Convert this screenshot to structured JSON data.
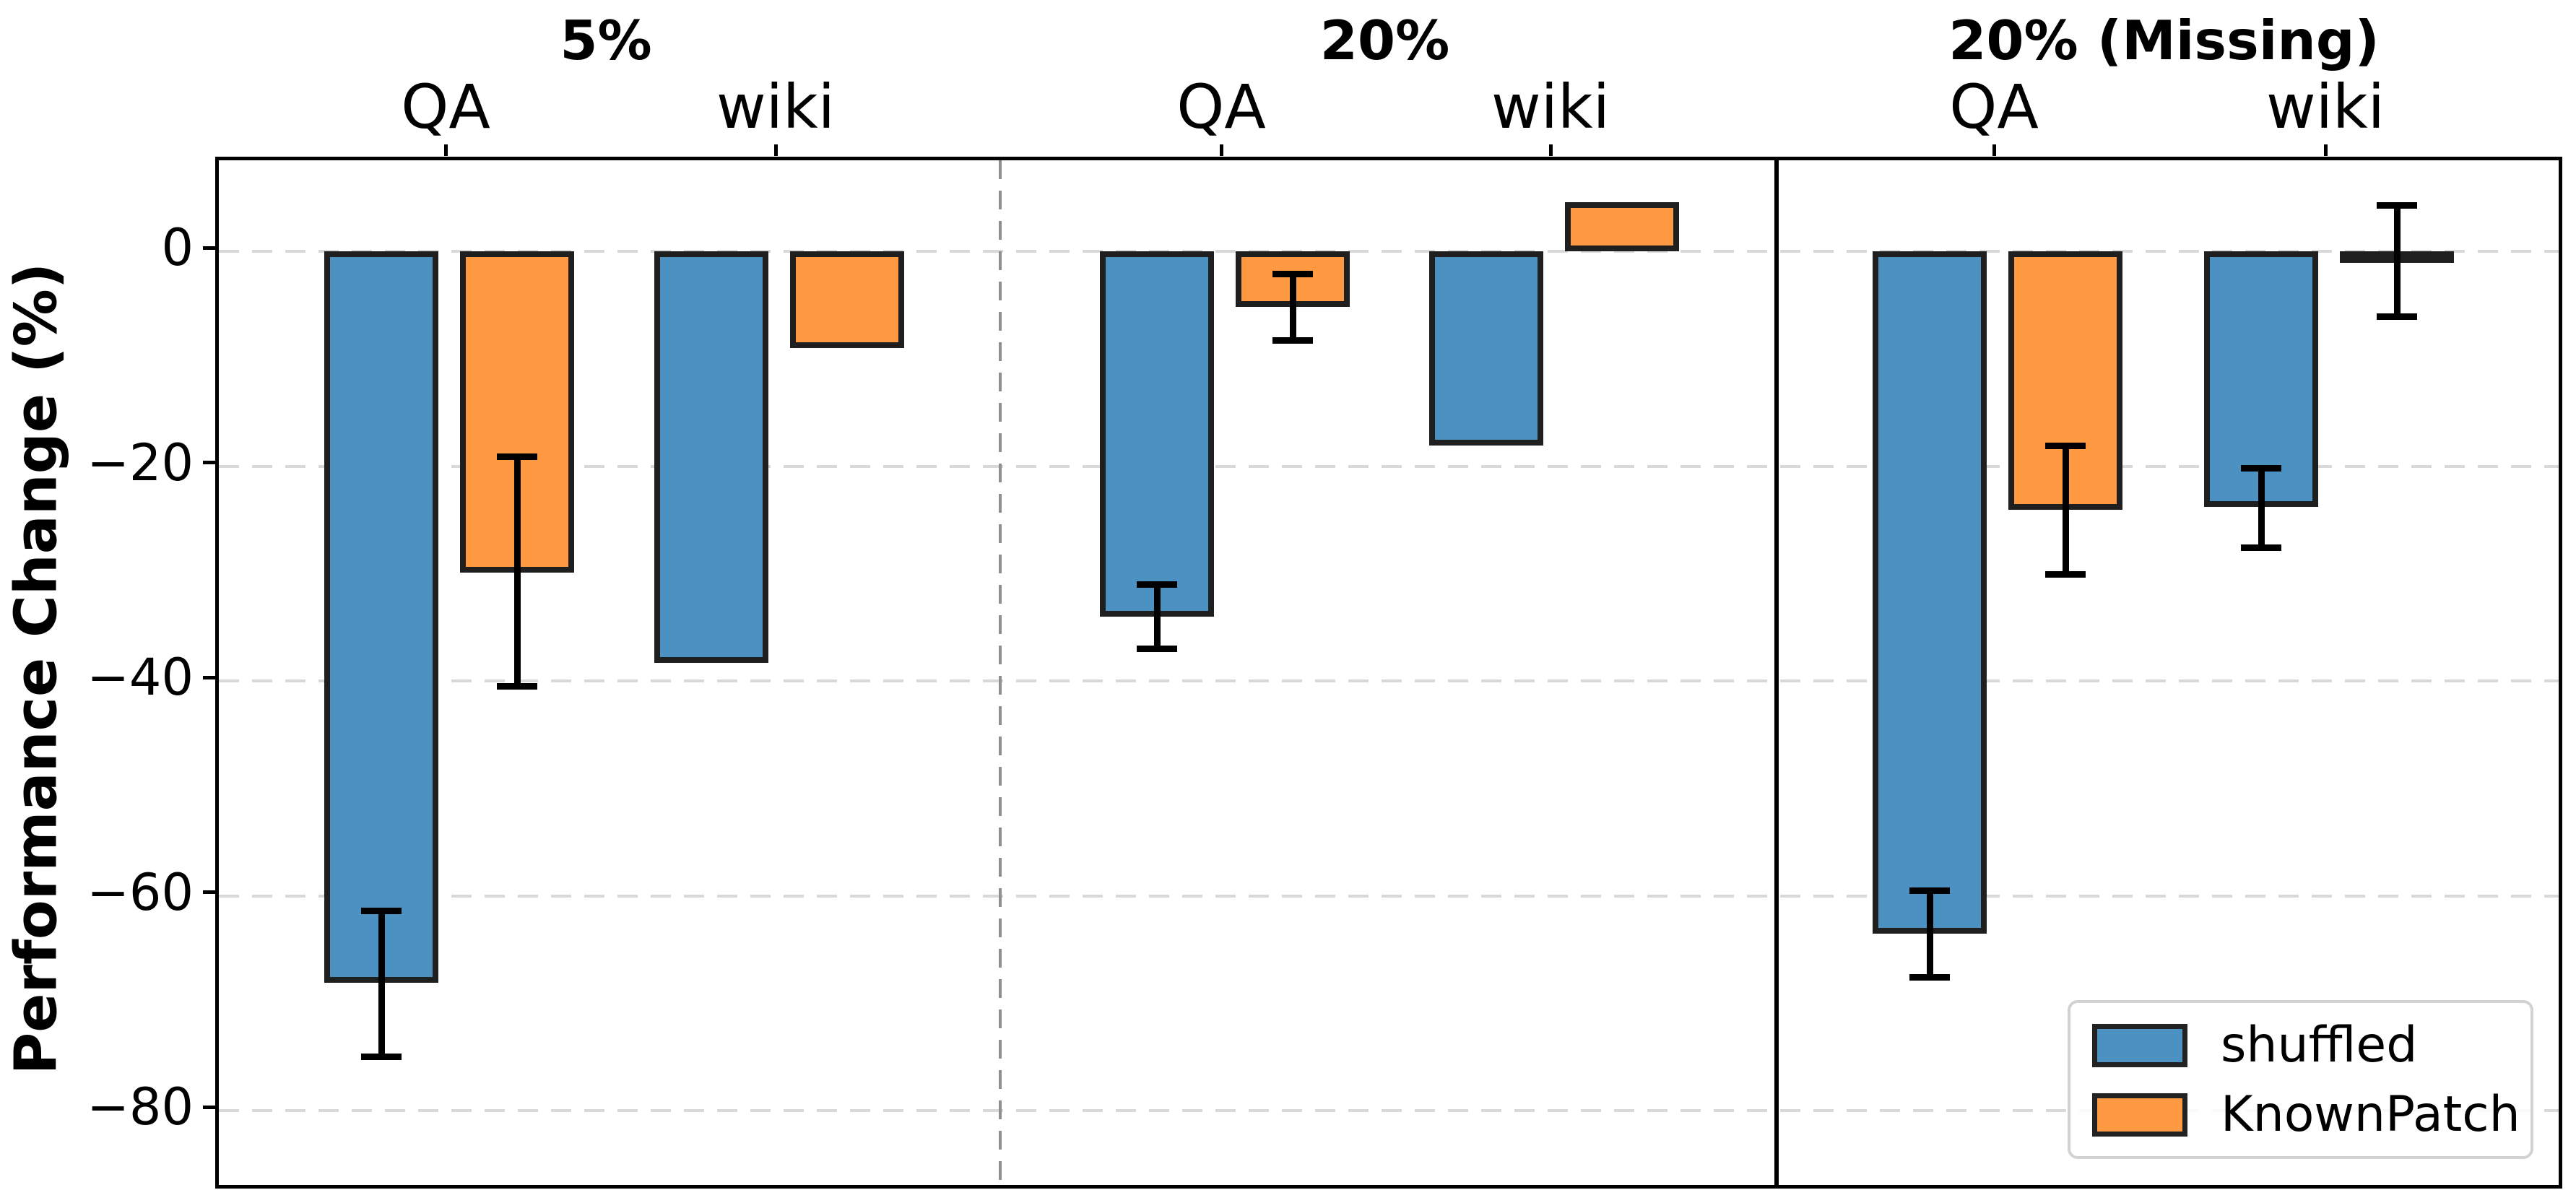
{
  "chart_data": {
    "type": "bar",
    "title": "",
    "ylabel": "Performance Change (%)",
    "ylim": [
      -87,
      8.5
    ],
    "yticks": [
      0,
      -20,
      -40,
      -60,
      -80
    ],
    "grid": "horizontal-dashed",
    "legend": {
      "position": "lower-right",
      "entries": [
        "shuffled",
        "KnownPatch"
      ]
    },
    "series": [
      {
        "name": "shuffled",
        "color": "#4b92c3"
      },
      {
        "name": "KnownPatch",
        "color": "#ff9942"
      }
    ],
    "bar_edge_color": "#1f1f1f",
    "error_bar_color": "#000000",
    "gridline_color": "#d9d9d9",
    "panels": [
      {
        "title": "5%",
        "divider_after": "dashed",
        "groups": [
          {
            "label": "QA",
            "bars": [
              {
                "series": "shuffled",
                "value": -68.1,
                "err_low": -75.0,
                "err_high": -61.4
              },
              {
                "series": "KnownPatch",
                "value": -29.9,
                "err_low": -40.5,
                "err_high": -19.1
              }
            ]
          },
          {
            "label": "wiki",
            "bars": [
              {
                "series": "shuffled",
                "value": -38.3,
                "err_low": null,
                "err_high": null
              },
              {
                "series": "KnownPatch",
                "value": -9.0,
                "err_low": null,
                "err_high": null
              }
            ]
          }
        ]
      },
      {
        "title": "20%",
        "divider_after": "solid",
        "groups": [
          {
            "label": "QA",
            "bars": [
              {
                "series": "shuffled",
                "value": -34.0,
                "err_low": -37.0,
                "err_high": -31.0
              },
              {
                "series": "KnownPatch",
                "value": -5.2,
                "err_low": -8.3,
                "err_high": -2.1
              }
            ]
          },
          {
            "label": "wiki",
            "bars": [
              {
                "series": "shuffled",
                "value": -18.1,
                "err_low": null,
                "err_high": null
              },
              {
                "series": "KnownPatch",
                "value": 4.6,
                "err_low": null,
                "err_high": null
              }
            ]
          }
        ]
      },
      {
        "title": "20% (Missing)",
        "divider_after": null,
        "groups": [
          {
            "label": "QA",
            "bars": [
              {
                "series": "shuffled",
                "value": -63.5,
                "err_low": -67.6,
                "err_high": -59.5
              },
              {
                "series": "KnownPatch",
                "value": -24.1,
                "err_low": -30.1,
                "err_high": -18.1
              }
            ]
          },
          {
            "label": "wiki",
            "bars": [
              {
                "series": "shuffled",
                "value": -23.8,
                "err_low": -27.6,
                "err_high": -20.2
              },
              {
                "series": "KnownPatch",
                "value": -0.9,
                "err_low": -6.1,
                "err_high": 4.3
              }
            ]
          }
        ]
      }
    ]
  }
}
